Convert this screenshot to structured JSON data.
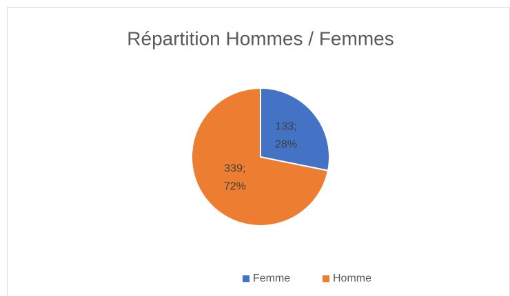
{
  "chart_data": {
    "type": "pie",
    "title": "Répartition Hommes / Femmes",
    "categories": [
      "Femme",
      "Homme"
    ],
    "values": [
      133,
      339
    ],
    "value_labels": [
      "133; 28%",
      "339; 72%"
    ],
    "colors": [
      "#4472c4",
      "#ed7d31"
    ],
    "legend": "bottom"
  }
}
